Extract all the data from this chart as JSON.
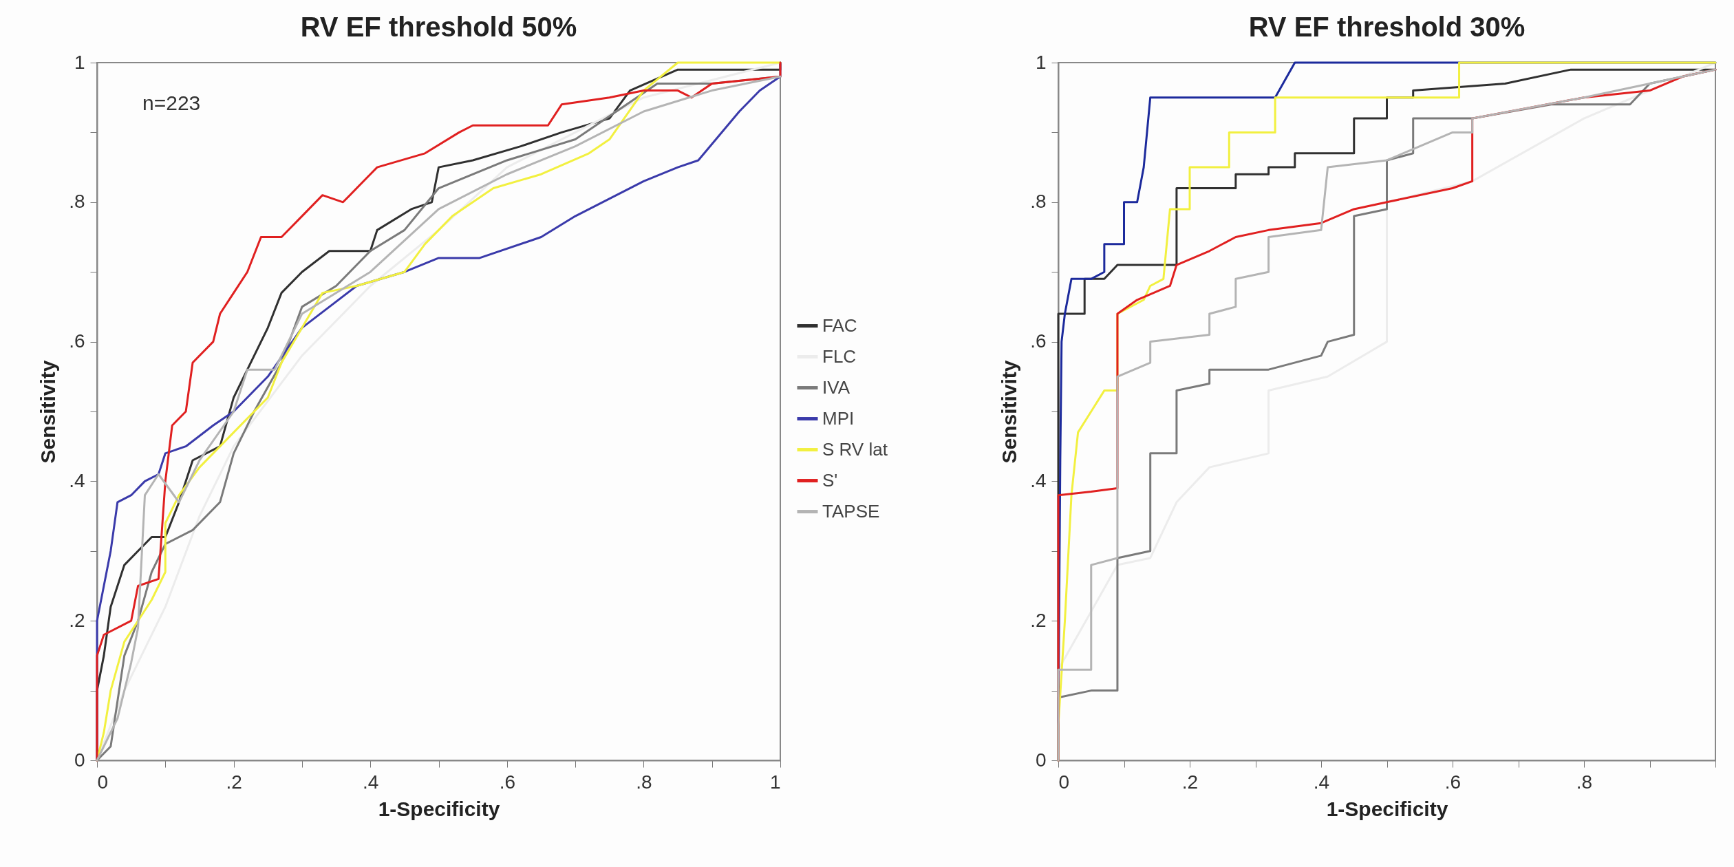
{
  "chart_data": [
    {
      "type": "line",
      "title": "RV EF threshold 50%",
      "xlabel": "1-Specificity",
      "ylabel": "Sensitivity",
      "annotations": [
        "n=223"
      ],
      "legend": "right",
      "marker": "none",
      "line_style": "solid",
      "grid": false,
      "xlim": [
        0,
        1
      ],
      "ylim": [
        0,
        1
      ],
      "xticks": [
        {
          "value": 0,
          "label": "0"
        },
        {
          "value": 0.1,
          "label": null
        },
        {
          "value": 0.2,
          "label": ".2"
        },
        {
          "value": 0.3,
          "label": null
        },
        {
          "value": 0.4,
          "label": ".4"
        },
        {
          "value": 0.5,
          "label": null
        },
        {
          "value": 0.6,
          "label": ".6"
        },
        {
          "value": 0.7,
          "label": null
        },
        {
          "value": 0.8,
          "label": ".8"
        },
        {
          "value": 0.9,
          "label": null
        },
        {
          "value": 1,
          "label": "1"
        }
      ],
      "yticks": [
        {
          "value": 0,
          "label": "0"
        },
        {
          "value": 0.1,
          "label": null
        },
        {
          "value": 0.2,
          "label": ".2"
        },
        {
          "value": 0.3,
          "label": null
        },
        {
          "value": 0.4,
          "label": ".4"
        },
        {
          "value": 0.5,
          "label": null
        },
        {
          "value": 0.6,
          "label": ".6"
        },
        {
          "value": 0.7,
          "label": null
        },
        {
          "value": 0.8,
          "label": ".8"
        },
        {
          "value": 0.9,
          "label": null
        },
        {
          "value": 1,
          "label": "1"
        }
      ],
      "series": [
        {
          "name": "FAC",
          "color": "#303030",
          "x": [
            0,
            0,
            0.01,
            0.02,
            0.04,
            0.06,
            0.08,
            0.1,
            0.12,
            0.14,
            0.18,
            0.2,
            0.22,
            0.25,
            0.27,
            0.3,
            0.34,
            0.4,
            0.41,
            0.46,
            0.49,
            0.5,
            0.55,
            0.62,
            0.68,
            0.75,
            0.78,
            0.85,
            1,
            1
          ],
          "values": [
            0,
            0.1,
            0.15,
            0.22,
            0.28,
            0.3,
            0.32,
            0.32,
            0.37,
            0.43,
            0.45,
            0.52,
            0.56,
            0.62,
            0.67,
            0.7,
            0.73,
            0.73,
            0.76,
            0.79,
            0.8,
            0.85,
            0.86,
            0.88,
            0.9,
            0.92,
            0.96,
            0.99,
            0.99,
            1
          ]
        },
        {
          "name": "FLC",
          "color": "#ececec",
          "x": [
            0,
            0.04,
            0.1,
            0.15,
            0.2,
            0.3,
            0.4,
            0.5,
            0.6,
            0.7,
            0.8,
            1
          ],
          "values": [
            0,
            0.1,
            0.22,
            0.35,
            0.45,
            0.58,
            0.68,
            0.76,
            0.85,
            0.9,
            0.95,
            1
          ]
        },
        {
          "name": "IVA",
          "color": "#7a7a7a",
          "x": [
            0,
            0.02,
            0.04,
            0.06,
            0.08,
            0.1,
            0.14,
            0.18,
            0.2,
            0.23,
            0.27,
            0.3,
            0.35,
            0.4,
            0.45,
            0.5,
            0.6,
            0.7,
            0.76,
            0.82,
            0.9,
            1
          ],
          "values": [
            0,
            0.02,
            0.15,
            0.2,
            0.27,
            0.31,
            0.33,
            0.37,
            0.44,
            0.5,
            0.57,
            0.65,
            0.68,
            0.73,
            0.76,
            0.82,
            0.86,
            0.89,
            0.93,
            0.97,
            0.97,
            0.98
          ]
        },
        {
          "name": "MPI",
          "color": "#3a3aaa",
          "x": [
            0,
            0,
            0.01,
            0.02,
            0.03,
            0.05,
            0.07,
            0.09,
            0.1,
            0.13,
            0.17,
            0.2,
            0.25,
            0.3,
            0.38,
            0.45,
            0.5,
            0.56,
            0.65,
            0.7,
            0.8,
            0.85,
            0.88,
            0.94,
            0.97,
            1,
            1
          ],
          "values": [
            0,
            0.2,
            0.25,
            0.3,
            0.37,
            0.38,
            0.4,
            0.41,
            0.44,
            0.45,
            0.48,
            0.5,
            0.55,
            0.62,
            0.68,
            0.7,
            0.72,
            0.72,
            0.75,
            0.78,
            0.83,
            0.85,
            0.86,
            0.93,
            0.96,
            0.98,
            1
          ]
        },
        {
          "name": "S RV lat",
          "color": "#f2f040",
          "x": [
            0,
            0.01,
            0.02,
            0.04,
            0.06,
            0.08,
            0.1,
            0.1,
            0.12,
            0.15,
            0.2,
            0.25,
            0.27,
            0.3,
            0.33,
            0.38,
            0.45,
            0.48,
            0.52,
            0.58,
            0.65,
            0.72,
            0.75,
            0.8,
            0.85,
            1
          ],
          "values": [
            0,
            0.04,
            0.1,
            0.17,
            0.2,
            0.23,
            0.27,
            0.34,
            0.38,
            0.42,
            0.47,
            0.52,
            0.57,
            0.62,
            0.67,
            0.68,
            0.7,
            0.74,
            0.78,
            0.82,
            0.84,
            0.87,
            0.89,
            0.96,
            1,
            1
          ]
        },
        {
          "name": "S'",
          "color": "#e02020",
          "x": [
            0,
            0,
            0.01,
            0.05,
            0.06,
            0.09,
            0.1,
            0.11,
            0.13,
            0.14,
            0.17,
            0.18,
            0.2,
            0.22,
            0.24,
            0.27,
            0.3,
            0.33,
            0.36,
            0.4,
            0.41,
            0.48,
            0.53,
            0.55,
            0.66,
            0.68,
            0.75,
            0.8,
            0.85,
            0.87,
            0.9,
            1,
            1
          ],
          "values": [
            0,
            0.15,
            0.18,
            0.2,
            0.25,
            0.26,
            0.4,
            0.48,
            0.5,
            0.57,
            0.6,
            0.64,
            0.67,
            0.7,
            0.75,
            0.75,
            0.78,
            0.81,
            0.8,
            0.84,
            0.85,
            0.87,
            0.9,
            0.91,
            0.91,
            0.94,
            0.95,
            0.96,
            0.96,
            0.95,
            0.97,
            0.98,
            1
          ]
        },
        {
          "name": "TAPSE",
          "color": "#b4b4b4",
          "x": [
            0,
            0.03,
            0.05,
            0.06,
            0.07,
            0.09,
            0.12,
            0.15,
            0.2,
            0.22,
            0.26,
            0.3,
            0.4,
            0.5,
            0.6,
            0.7,
            0.8,
            0.9,
            1
          ],
          "values": [
            0,
            0.06,
            0.14,
            0.19,
            0.38,
            0.41,
            0.37,
            0.43,
            0.5,
            0.56,
            0.56,
            0.64,
            0.7,
            0.79,
            0.84,
            0.88,
            0.93,
            0.96,
            0.98
          ]
        }
      ]
    },
    {
      "type": "line",
      "title": "RV EF threshold 30%",
      "xlabel": "1-Specificity",
      "ylabel": "Sensitivity",
      "marker": "none",
      "line_style": "solid",
      "grid": false,
      "xlim": [
        0,
        1
      ],
      "ylim": [
        0,
        1
      ],
      "xticks": [
        {
          "value": 0,
          "label": "0"
        },
        {
          "value": 0.1,
          "label": null
        },
        {
          "value": 0.2,
          "label": ".2"
        },
        {
          "value": 0.3,
          "label": null
        },
        {
          "value": 0.4,
          "label": ".4"
        },
        {
          "value": 0.5,
          "label": null
        },
        {
          "value": 0.6,
          "label": ".6"
        },
        {
          "value": 0.7,
          "label": null
        },
        {
          "value": 0.8,
          "label": ".8"
        },
        {
          "value": 0.9,
          "label": null
        },
        {
          "value": 1,
          "label": null
        }
      ],
      "yticks": [
        {
          "value": 0,
          "label": "0"
        },
        {
          "value": 0.1,
          "label": null
        },
        {
          "value": 0.2,
          "label": ".2"
        },
        {
          "value": 0.3,
          "label": null
        },
        {
          "value": 0.4,
          "label": ".4"
        },
        {
          "value": 0.5,
          "label": null
        },
        {
          "value": 0.6,
          "label": ".6"
        },
        {
          "value": 0.7,
          "label": null
        },
        {
          "value": 0.8,
          "label": ".8"
        },
        {
          "value": 0.9,
          "label": null
        },
        {
          "value": 1,
          "label": "1"
        }
      ],
      "series": [
        {
          "color": "#303030",
          "x": [
            0,
            0,
            0.04,
            0.04,
            0.07,
            0.09,
            0.18,
            0.18,
            0.27,
            0.27,
            0.32,
            0.32,
            0.36,
            0.36,
            0.45,
            0.45,
            0.5,
            0.5,
            0.54,
            0.54,
            0.68,
            0.78,
            1
          ],
          "values": [
            0,
            0.64,
            0.64,
            0.69,
            0.69,
            0.71,
            0.71,
            0.82,
            0.82,
            0.84,
            0.84,
            0.85,
            0.85,
            0.87,
            0.87,
            0.92,
            0.92,
            0.95,
            0.95,
            0.96,
            0.97,
            0.99,
            0.99
          ]
        },
        {
          "color": "#ececec",
          "x": [
            0,
            0,
            0.09,
            0.14,
            0.18,
            0.23,
            0.32,
            0.32,
            0.41,
            0.5,
            0.5,
            0.63,
            0.8,
            1
          ],
          "values": [
            0,
            0.13,
            0.28,
            0.29,
            0.37,
            0.42,
            0.44,
            0.53,
            0.55,
            0.6,
            0.8,
            0.83,
            0.92,
            1
          ]
        },
        {
          "color": "#7a7a7a",
          "x": [
            0,
            0,
            0.05,
            0.09,
            0.09,
            0.14,
            0.14,
            0.18,
            0.18,
            0.23,
            0.23,
            0.32,
            0.4,
            0.41,
            0.45,
            0.45,
            0.5,
            0.5,
            0.54,
            0.54,
            0.63,
            0.75,
            0.87,
            0.9,
            1
          ],
          "values": [
            0,
            0.09,
            0.1,
            0.1,
            0.29,
            0.3,
            0.44,
            0.44,
            0.53,
            0.54,
            0.56,
            0.56,
            0.58,
            0.6,
            0.61,
            0.78,
            0.79,
            0.86,
            0.87,
            0.92,
            0.92,
            0.94,
            0.94,
            0.97,
            0.99
          ]
        },
        {
          "color": "#1c2a9c",
          "x": [
            0,
            0,
            0.003,
            0.005,
            0.01,
            0.02,
            0.05,
            0.07,
            0.07,
            0.1,
            0.1,
            0.12,
            0.13,
            0.14,
            0.33,
            0.36,
            1
          ],
          "values": [
            0,
            0.05,
            0.43,
            0.6,
            0.64,
            0.69,
            0.69,
            0.7,
            0.74,
            0.74,
            0.8,
            0.8,
            0.85,
            0.95,
            0.95,
            1,
            1
          ]
        },
        {
          "color": "#f2f040",
          "x": [
            0,
            0,
            0.01,
            0.02,
            0.03,
            0.05,
            0.07,
            0.09,
            0.09,
            0.13,
            0.14,
            0.16,
            0.17,
            0.2,
            0.2,
            0.26,
            0.26,
            0.33,
            0.33,
            0.61,
            0.61,
            1
          ],
          "values": [
            0,
            0.05,
            0.2,
            0.38,
            0.47,
            0.5,
            0.53,
            0.53,
            0.64,
            0.66,
            0.68,
            0.69,
            0.79,
            0.79,
            0.85,
            0.85,
            0.9,
            0.9,
            0.95,
            0.95,
            1,
            1
          ]
        },
        {
          "color": "#e02020",
          "x": [
            0,
            0,
            0.05,
            0.09,
            0.09,
            0.12,
            0.17,
            0.18,
            0.23,
            0.27,
            0.32,
            0.4,
            0.45,
            0.5,
            0.6,
            0.63,
            0.63,
            0.8,
            0.9,
            0.95,
            1
          ],
          "values": [
            0,
            0.38,
            0.385,
            0.39,
            0.64,
            0.66,
            0.68,
            0.71,
            0.73,
            0.75,
            0.76,
            0.77,
            0.79,
            0.8,
            0.82,
            0.83,
            0.92,
            0.95,
            0.96,
            0.98,
            0.99
          ]
        },
        {
          "color": "#b4b4b4",
          "x": [
            0,
            0,
            0.05,
            0.05,
            0.09,
            0.09,
            0.14,
            0.14,
            0.23,
            0.23,
            0.27,
            0.27,
            0.32,
            0.32,
            0.4,
            0.41,
            0.5,
            0.55,
            0.6,
            0.63,
            0.63,
            0.8,
            0.9,
            1
          ],
          "values": [
            0,
            0.13,
            0.13,
            0.28,
            0.29,
            0.55,
            0.57,
            0.6,
            0.61,
            0.64,
            0.65,
            0.69,
            0.7,
            0.75,
            0.76,
            0.85,
            0.86,
            0.88,
            0.9,
            0.9,
            0.92,
            0.95,
            0.97,
            0.99
          ]
        }
      ]
    }
  ]
}
